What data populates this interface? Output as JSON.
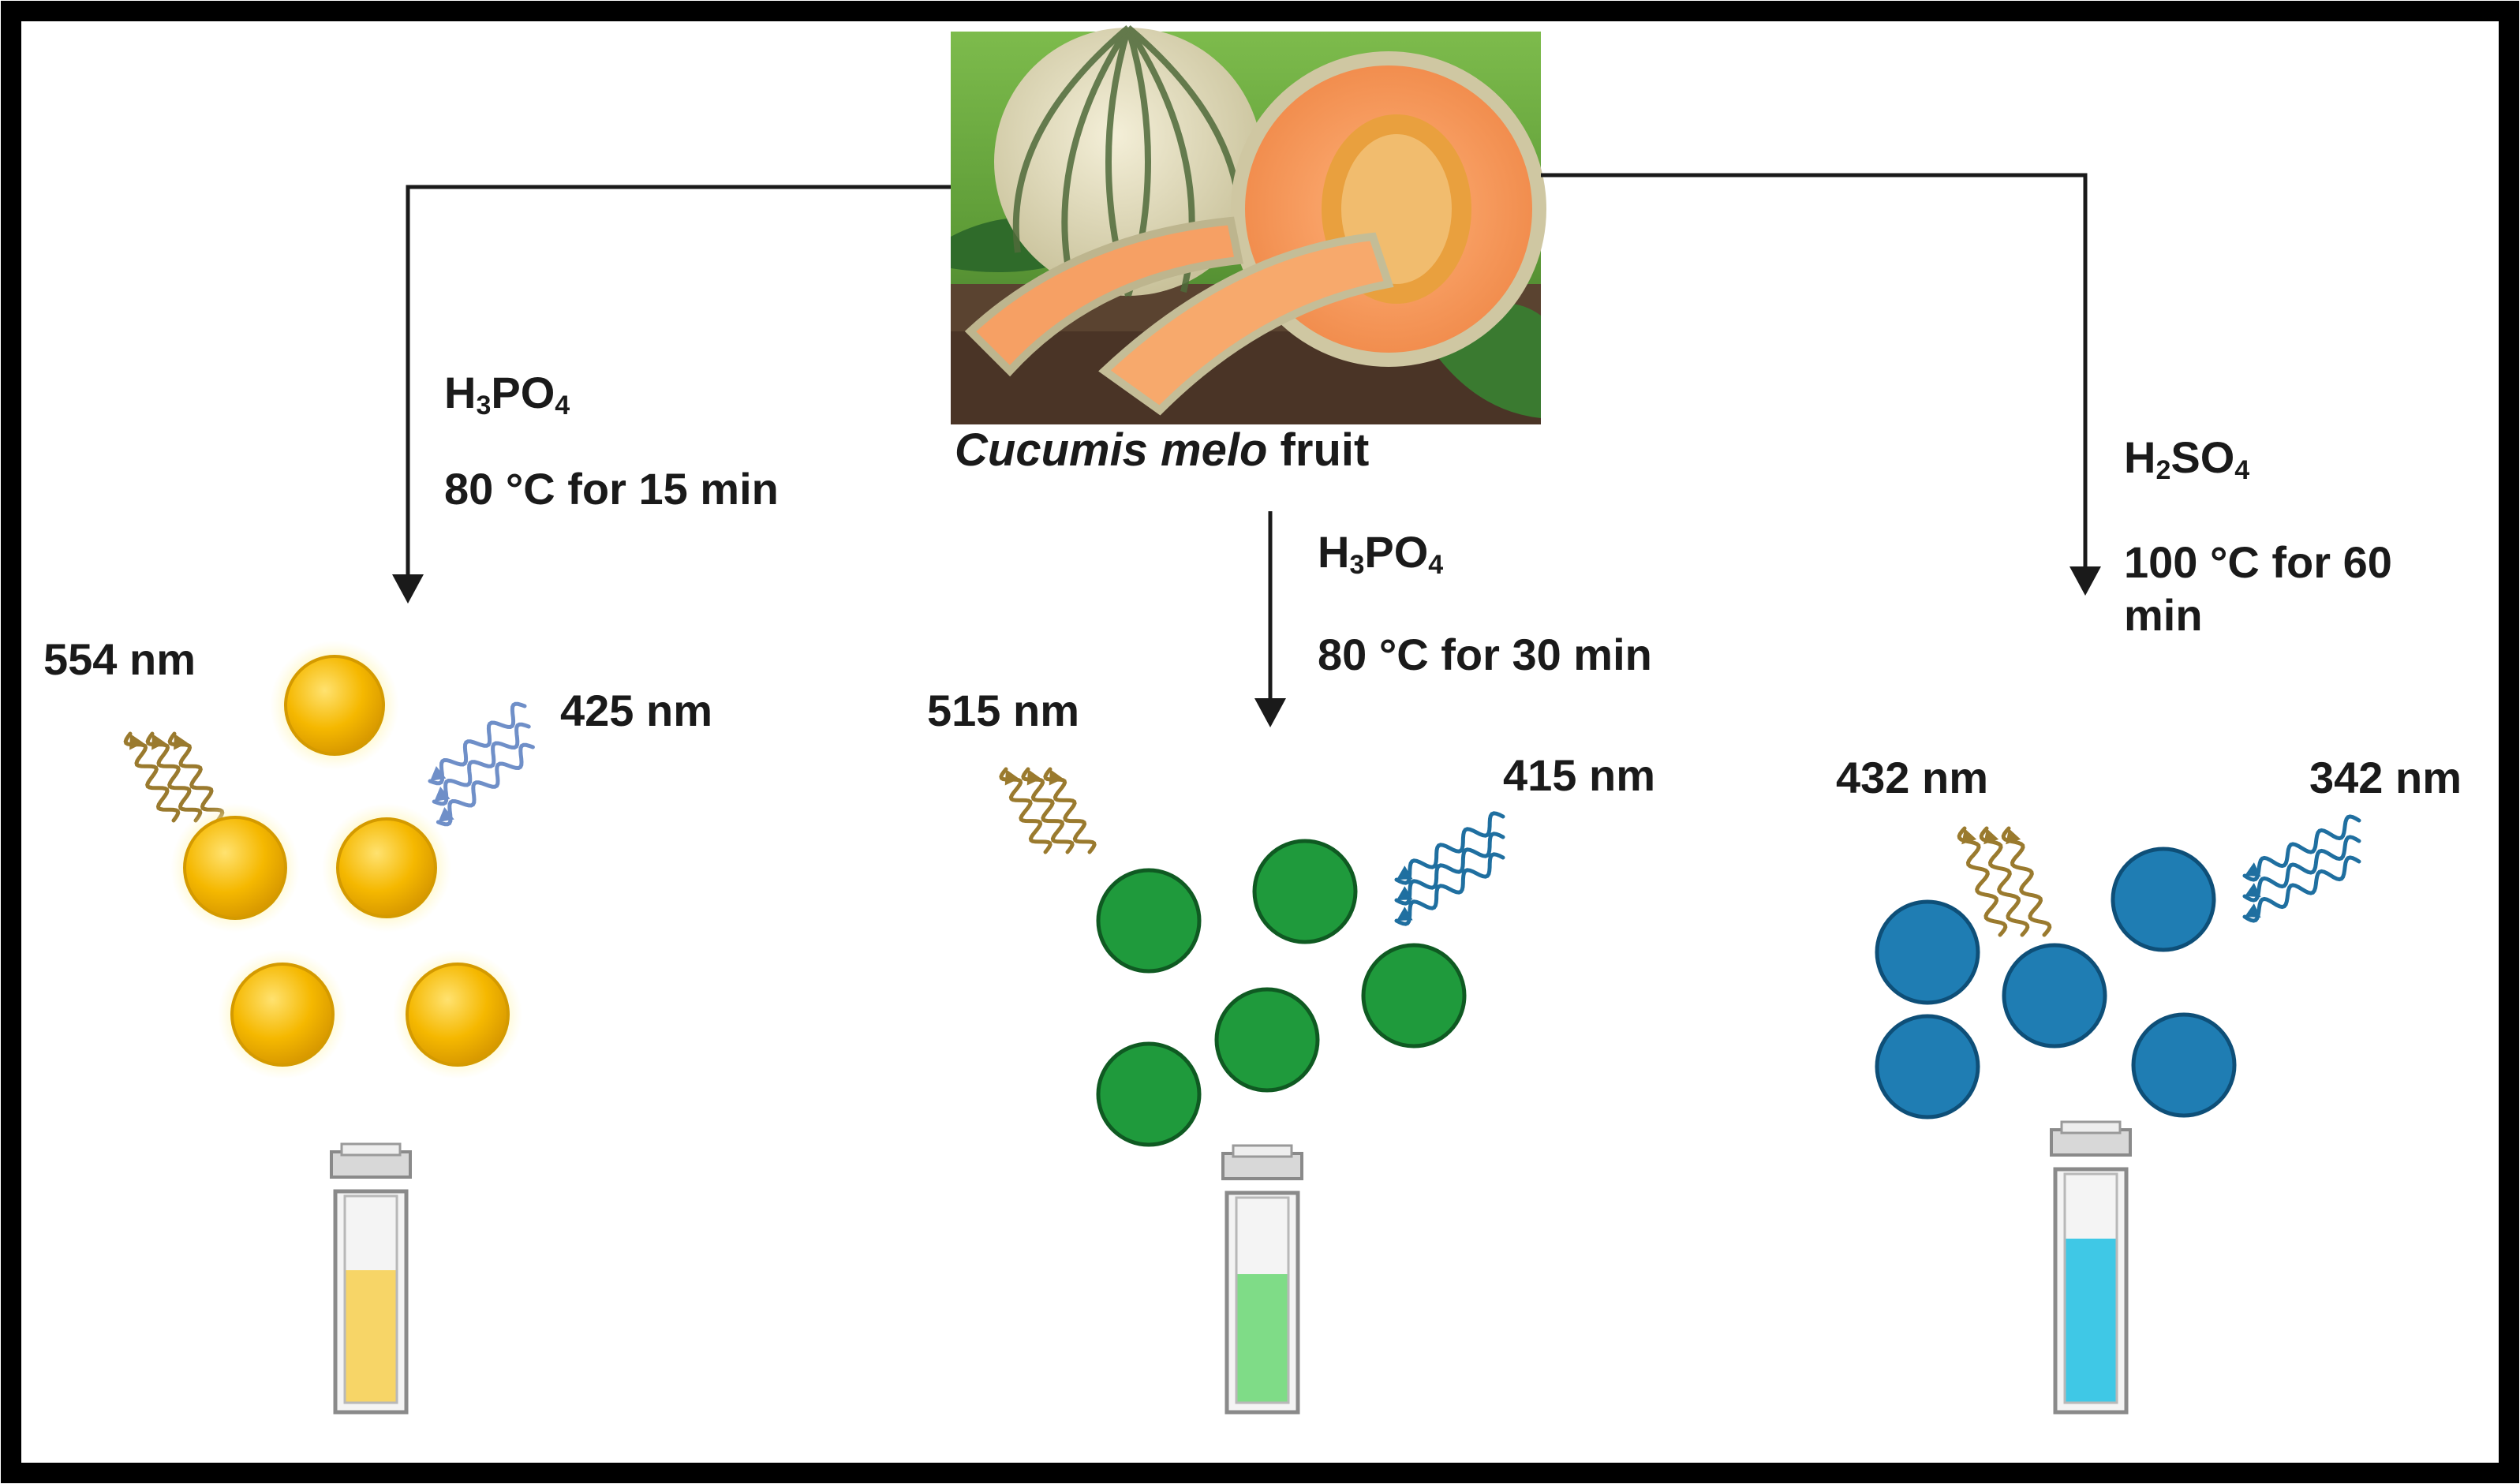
{
  "source": {
    "name_italic": "Cucumis melo",
    "name_suffix": " fruit"
  },
  "branches": [
    {
      "acid": {
        "main": "H",
        "sub1": "3",
        "mid": "PO",
        "sub2": "4"
      },
      "condition": "80 °C for 15 min",
      "emission": "554 nm",
      "excitation": "425 nm",
      "color": "#f3b400",
      "liquid": "#f7d567"
    },
    {
      "acid": {
        "main": "H",
        "sub1": "3",
        "mid": "PO",
        "sub2": "4"
      },
      "condition": "80 °C for 30 min",
      "emission": "515 nm",
      "excitation": "415 nm",
      "color": "#1f9a3c",
      "liquid": "#7fdc87"
    },
    {
      "acid": {
        "main": "H",
        "sub1": "2",
        "mid": "SO",
        "sub2": "4"
      },
      "condition_line1": "100 °C for 60",
      "condition_line2": "min",
      "emission": "432 nm",
      "excitation": "342 nm",
      "color": "#1f7db3",
      "liquid": "#3fc8e6"
    }
  ]
}
